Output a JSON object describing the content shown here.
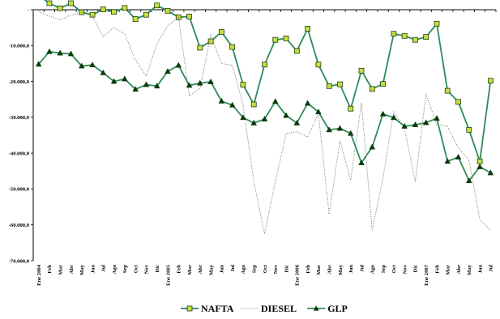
{
  "chart_data": {
    "type": "line",
    "title": "",
    "xlabel": "",
    "ylabel": "",
    "ylim": [
      -70000,
      0
    ],
    "y_ticks": [
      0,
      -10000,
      -20000,
      -30000,
      -40000,
      -50000,
      -60000,
      -70000
    ],
    "y_tick_labels": [
      "-",
      "-10.000,0",
      "-20.000,0",
      "-30.000,0",
      "-40.000,0",
      "-50.000,0",
      "-60.000,0",
      "-70.000,0"
    ],
    "grid": false,
    "legend_position": "bottom-center",
    "categories": [
      "Ene 2004",
      "Feb",
      "Mar",
      "Abr",
      "May",
      "Jun",
      "Jul",
      "Ago",
      "Sep",
      "Oct",
      "Nov",
      "Dic",
      "Ene 2005",
      "Feb",
      "Mar",
      "Abr",
      "May",
      "Jun",
      "Jul",
      "Ago",
      "Sep",
      "Oct",
      "Nov",
      "Dic",
      "Ene 2006",
      "Feb",
      "Mar",
      "Abr",
      "May",
      "Jun",
      "Jul",
      "Ago",
      "Sep",
      "Oct",
      "Nov",
      "Dic",
      "Ene 2007",
      "Feb",
      "Mar",
      "Abr",
      "May",
      "Jun",
      "Jul"
    ],
    "series": [
      {
        "name": "NAFTA",
        "color": "#2e8b57",
        "marker": "square",
        "marker_fill": "#c6e03a",
        "line_style": "solid",
        "values": [
          4000,
          1800,
          400,
          1800,
          -700,
          -1400,
          100,
          -600,
          500,
          -2600,
          -1400,
          1200,
          -300,
          -2100,
          -1900,
          -10600,
          -8800,
          -6200,
          -10400,
          -20900,
          -26400,
          -15300,
          -8400,
          -8000,
          -11500,
          -5300,
          -15300,
          -21300,
          -20800,
          -27600,
          -17000,
          -22100,
          -20700,
          -6700,
          -7300,
          -8400,
          -7600,
          -3900,
          -22600,
          -25700,
          -33500,
          -42300,
          -19800
        ]
      },
      {
        "name": "DIESEL",
        "color": "#666666",
        "marker": "none",
        "line_style": "dotted",
        "values": [
          -500,
          -1800,
          -2800,
          -1500,
          -800,
          -1800,
          -7500,
          -5000,
          -6800,
          -14000,
          -18500,
          -9500,
          -4500,
          -2000,
          -24000,
          -22000,
          -7000,
          -15000,
          -15500,
          -26500,
          -48000,
          -62500,
          -48000,
          -34500,
          -34000,
          -35500,
          -29000,
          -57000,
          -36500,
          -47500,
          -26000,
          -61500,
          -47000,
          -28500,
          -33000,
          -48000,
          -23500,
          -32000,
          -32500,
          -38500,
          -42000,
          -58500,
          -61500
        ]
      },
      {
        "name": "GLP",
        "color": "#2e8b57",
        "marker": "triangle",
        "marker_fill": "#0a3a0a",
        "line_style": "solid",
        "values": [
          -15200,
          -11700,
          -12100,
          -12300,
          -15700,
          -15400,
          -17600,
          -20000,
          -19300,
          -22200,
          -20900,
          -21300,
          -17200,
          -15500,
          -21100,
          -20500,
          -20100,
          -25500,
          -26600,
          -30100,
          -31600,
          -30500,
          -25600,
          -29500,
          -31600,
          -26100,
          -28500,
          -33500,
          -33100,
          -34500,
          -42700,
          -38300,
          -29100,
          -30100,
          -32500,
          -32100,
          -31500,
          -30300,
          -42300,
          -41100,
          -47700,
          -43800,
          -45500
        ]
      }
    ]
  }
}
